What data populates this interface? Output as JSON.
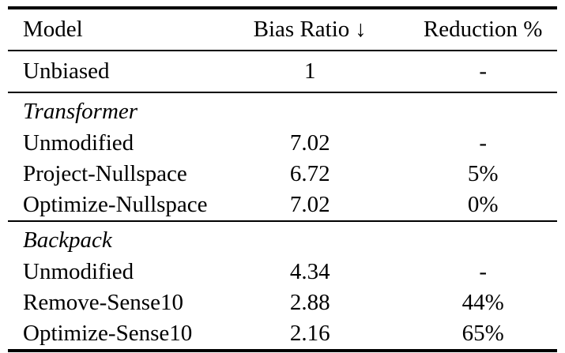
{
  "table": {
    "header": {
      "model": "Model",
      "bias_ratio_label": "Bias Ratio",
      "bias_ratio_arrow": "↓",
      "reduction": "Reduction %"
    },
    "sections": [
      {
        "label": "",
        "rows": [
          {
            "model": "Unbiased",
            "bias_ratio": "1",
            "reduction": "-"
          }
        ]
      },
      {
        "label": "Transformer",
        "rows": [
          {
            "model": "Unmodified",
            "bias_ratio": "7.02",
            "reduction": "-"
          },
          {
            "model": "Project-Nullspace",
            "bias_ratio": "6.72",
            "reduction": "5%"
          },
          {
            "model": "Optimize-Nullspace",
            "bias_ratio": "7.02",
            "reduction": "0%"
          }
        ]
      },
      {
        "label": "Backpack",
        "rows": [
          {
            "model": "Unmodified",
            "bias_ratio": "4.34",
            "reduction": "-"
          },
          {
            "model": "Remove-Sense10",
            "bias_ratio": "2.88",
            "reduction": "44%"
          },
          {
            "model": "Optimize-Sense10",
            "bias_ratio": "2.16",
            "reduction": "65%"
          }
        ]
      }
    ],
    "style": {
      "text_color": "#000000",
      "background_color": "#ffffff",
      "rule_color": "#000000"
    }
  }
}
